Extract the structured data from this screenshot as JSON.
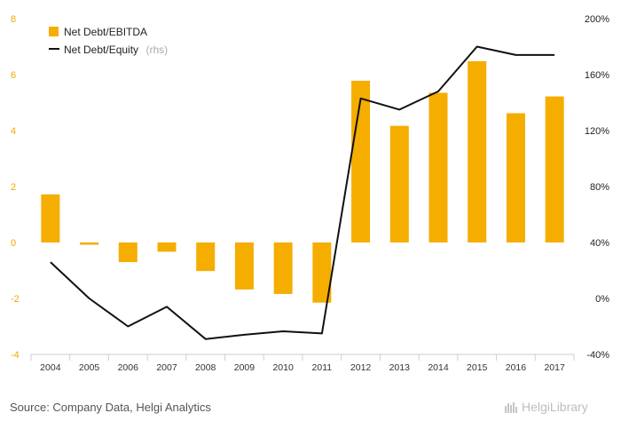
{
  "chart_data": {
    "type": "bar",
    "categories": [
      "2004",
      "2005",
      "2006",
      "2007",
      "2008",
      "2009",
      "2010",
      "2011",
      "2012",
      "2013",
      "2014",
      "2015",
      "2016",
      "2017"
    ],
    "series": [
      {
        "name": "Net Debt/EBITDA",
        "type": "bar",
        "axis": "left",
        "color": "#f5ad00",
        "values": [
          1.72,
          -0.08,
          -0.7,
          -0.33,
          -1.02,
          -1.68,
          -1.84,
          -2.15,
          5.78,
          4.17,
          5.35,
          6.48,
          4.62,
          5.22
        ]
      },
      {
        "name": "Net Debt/Equity",
        "name_suffix": "(rhs)",
        "type": "line",
        "axis": "right",
        "color": "#111111",
        "values": [
          26,
          0,
          -20,
          -6,
          -29,
          -26,
          -23.5,
          -25,
          143,
          135,
          148,
          180,
          174,
          174
        ]
      }
    ],
    "y_left": {
      "ylim": [
        -4,
        8
      ],
      "ticks": [
        "-4",
        "-2",
        "0",
        "2",
        "4",
        "6",
        "8"
      ],
      "tick_values": [
        -4,
        -2,
        0,
        2,
        4,
        6,
        8
      ]
    },
    "y_right": {
      "ylim": [
        -40,
        200
      ],
      "ticks": [
        "-40%",
        "0%",
        "40%",
        "80%",
        "120%",
        "160%",
        "200%"
      ],
      "tick_values": [
        -40,
        0,
        40,
        80,
        120,
        160,
        200
      ]
    },
    "legend_position": "top-left",
    "grid": false
  },
  "colors": {
    "bar": "#f5ad00",
    "line": "#111111",
    "left_axis_text": "#f2a900"
  },
  "footer": {
    "source": "Source: Company Data, Helgi Analytics",
    "logo": "HelgiLibrary"
  }
}
